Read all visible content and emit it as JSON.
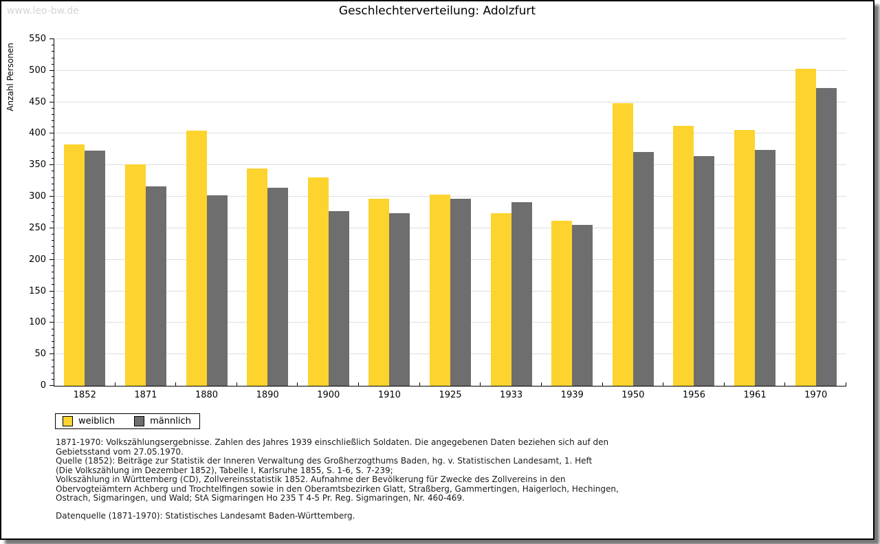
{
  "watermark": "www.leo-bw.de",
  "chart_data": {
    "type": "bar",
    "title": "Geschlechterverteilung: Adolzfurt",
    "xlabel": "",
    "ylabel": "Anzahl Personen",
    "categories": [
      "1852",
      "1871",
      "1880",
      "1890",
      "1900",
      "1910",
      "1925",
      "1933",
      "1939",
      "1950",
      "1956",
      "1961",
      "1970"
    ],
    "series": [
      {
        "name": "weiblich",
        "color": "#FDD32E",
        "values": [
          383,
          351,
          405,
          345,
          331,
          297,
          303,
          274,
          262,
          448,
          413,
          406,
          503
        ]
      },
      {
        "name": "männlich",
        "color": "#6E6E6E",
        "values": [
          373,
          317,
          302,
          314,
          277,
          274,
          297,
          291,
          255,
          371,
          364,
          374,
          472
        ]
      }
    ],
    "ylim": [
      0,
      550
    ],
    "yticks": [
      0,
      50,
      100,
      150,
      200,
      250,
      300,
      350,
      400,
      450,
      500,
      550
    ],
    "ytick_minor_step": 10,
    "grid": true,
    "gridline_color": "#dedede",
    "legend_position": "bottom-left"
  },
  "legend": {
    "items": [
      {
        "label": "weiblich",
        "color": "#FDD32E"
      },
      {
        "label": "männlich",
        "color": "#6E6E6E"
      }
    ]
  },
  "footnotes": {
    "lines": [
      "1871-1970: Volkszählungsergebnisse. Zahlen des Jahres 1939 einschließlich Soldaten. Die angegebenen Daten beziehen sich auf den",
      "Gebietsstand vom 27.05.1970.",
      "Quelle (1852): Beiträge zur Statistik der Inneren Verwaltung des Großherzogthums Baden, hg. v. Statistischen Landesamt, 1. Heft",
      "(Die Volkszählung im Dezember 1852), Tabelle I, Karlsruhe 1855, S. 1-6, S. 7-239;",
      "Volkszählung in Württemberg (CD), Zollvereinsstatistik 1852. Aufnahme der Bevölkerung für Zwecke des Zollvereins in den",
      "Obervogteiämtern Achberg und Trochtelfingen sowie in den Oberamtsbezirken Glatt, Straßberg, Gammertingen, Haigerloch, Hechingen,",
      "Ostrach, Sigmaringen, und Wald; StA Sigmaringen Ho 235 T 4-5 Pr. Reg. Sigmaringen, Nr. 460-469."
    ],
    "datasource": "Datenquelle (1871-1970): Statistisches Landesamt Baden-Württemberg."
  }
}
